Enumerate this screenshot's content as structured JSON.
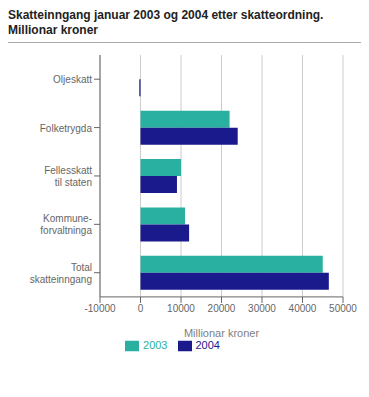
{
  "chart_data": {
    "type": "bar",
    "orientation": "horizontal",
    "title": "Skatteinngang januar 2003 og 2004 etter skatteordning.",
    "subtitle": "Millionar kroner",
    "categories": [
      "Total\nskatteinngang",
      "Kommune-\nforvaltninga",
      "Fellesskatt\ntil staten",
      "Folketrygda",
      "Oljeskatt"
    ],
    "series": [
      {
        "name": "2003",
        "color": "#2ab0a0",
        "values": [
          45000,
          11000,
          10000,
          22000,
          0
        ]
      },
      {
        "name": "2004",
        "color": "#1a1a8c",
        "values": [
          46500,
          12000,
          9000,
          24000,
          -300
        ]
      }
    ],
    "xlabel": "Millionar kroner",
    "xlim": [
      -10000,
      50000
    ],
    "xticks": [
      -10000,
      0,
      10000,
      20000,
      30000,
      40000,
      50000
    ],
    "grid": true,
    "legend": "bottom"
  }
}
